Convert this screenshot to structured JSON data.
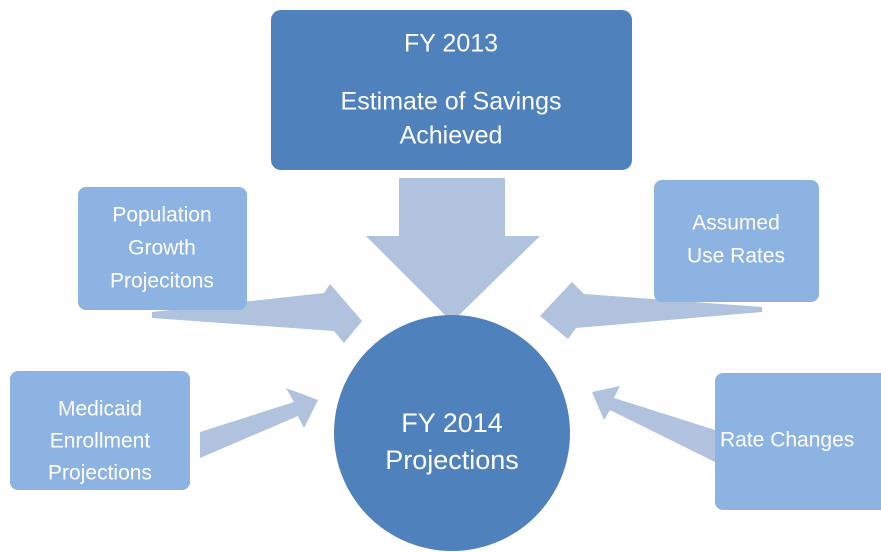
{
  "center": {
    "lines": [
      "FY 2014",
      "Projections"
    ]
  },
  "top": {
    "lines": [
      "FY 2013",
      "Estimate of Savings",
      "Achieved"
    ]
  },
  "inputs": [
    {
      "lines": [
        "Population",
        "Growth",
        "Projecitons"
      ]
    },
    {
      "lines": [
        "Assumed",
        "Use Rates"
      ]
    },
    {
      "lines": [
        "Medicaid",
        "Enrollment",
        "Projections"
      ]
    },
    {
      "lines": [
        "Rate Changes"
      ]
    }
  ]
}
